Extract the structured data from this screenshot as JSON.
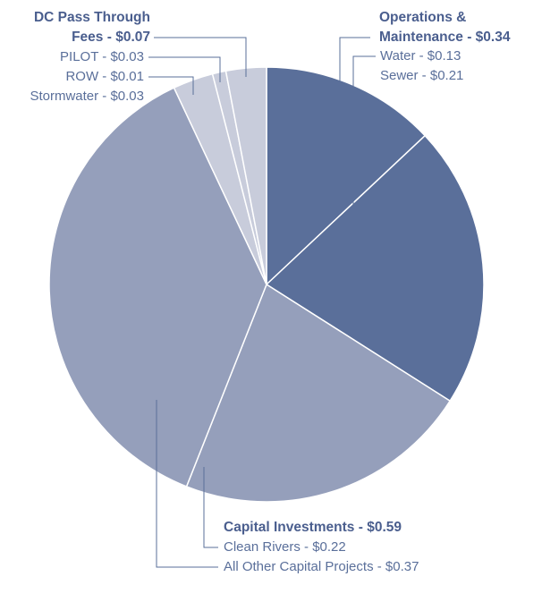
{
  "chart_data": {
    "type": "pie",
    "groups": [
      {
        "label": "Operations & Maintenance - $0.34",
        "color": "#5a6f9a",
        "categories": [
          "Water - $0.13",
          "Sewer - $0.21"
        ],
        "values": [
          0.13,
          0.21
        ]
      },
      {
        "label": "Capital Investments - $0.59",
        "color": "#959fbb",
        "categories": [
          "Clean Rivers - $0.22",
          "All Other Capital Projects - $0.37"
        ],
        "values": [
          0.22,
          0.37
        ]
      },
      {
        "label": "DC Pass Through Fees - $0.07",
        "color": "#c8ccdb",
        "categories": [
          "Stormwater - $0.03",
          "ROW - $0.01",
          "PILOT - $0.03"
        ],
        "values": [
          0.03,
          0.01,
          0.03
        ]
      }
    ]
  }
}
